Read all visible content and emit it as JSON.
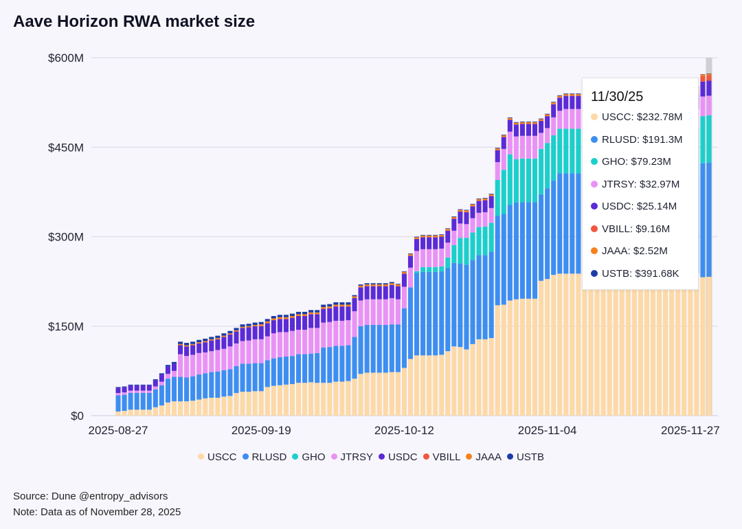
{
  "title": "Aave Horizon RWA market size",
  "footer": {
    "source": "Source: Dune @entropy_advisors",
    "note": "Note: Data as of November 28, 2025"
  },
  "tooltip": {
    "date": "11/30/25",
    "rows": [
      {
        "label": "USCC: $232.78M",
        "color": "#fcd9a6"
      },
      {
        "label": "RLUSD: $191.3M",
        "color": "#3d8ef0"
      },
      {
        "label": "GHO: $79.23M",
        "color": "#1ccfcb"
      },
      {
        "label": "JTRSY: $32.97M",
        "color": "#e992f5"
      },
      {
        "label": "USDC: $25.14M",
        "color": "#5b2bd6"
      },
      {
        "label": "VBILL: $9.16M",
        "color": "#f2573d"
      },
      {
        "label": "JAAA: $2.52M",
        "color": "#f5821f"
      },
      {
        "label": "USTB: $391.68K",
        "color": "#1c3da6"
      }
    ]
  },
  "chart_data": {
    "type": "bar",
    "stacked": true,
    "title": "Aave Horizon RWA market size",
    "xlabel": "",
    "ylabel": "",
    "ylim": [
      0,
      600
    ],
    "y_unit": "$M",
    "yticks": [
      0,
      150,
      300,
      450,
      600
    ],
    "ytick_labels": [
      "$0",
      "$150M",
      "$300M",
      "$450M",
      "$600M"
    ],
    "xtick_labels": [
      "2025-08-27",
      "2025-09-19",
      "2025-10-12",
      "2025-11-04",
      "2025-11-27"
    ],
    "xtick_index": [
      0,
      23,
      46,
      69,
      92
    ],
    "grid": true,
    "legend_position": "bottom",
    "series_order": [
      "USCC",
      "RLUSD",
      "GHO",
      "JTRSY",
      "USDC",
      "VBILL",
      "JAAA",
      "USTB"
    ],
    "colors": {
      "USCC": "#fcd9a6",
      "RLUSD": "#3d8ef0",
      "GHO": "#1ccfcb",
      "JTRSY": "#e992f5",
      "USDC": "#5b2bd6",
      "VBILL": "#f2573d",
      "JAAA": "#f5821f",
      "USTB": "#1c3da6"
    },
    "highlight_index": 95,
    "series": [
      {
        "name": "USCC",
        "values": [
          7,
          8,
          10,
          10,
          10,
          10,
          14,
          17,
          22,
          24,
          24,
          24,
          25,
          27,
          29,
          30,
          30,
          32,
          33,
          38,
          40,
          40,
          41,
          41,
          48,
          50,
          51,
          52,
          53,
          55,
          55,
          56,
          55,
          55,
          55,
          57,
          57,
          58,
          62,
          70,
          72,
          72,
          72,
          72,
          73,
          73,
          80,
          95,
          101,
          101,
          101,
          101,
          102,
          108,
          116,
          115,
          111,
          120,
          128,
          128,
          130,
          185,
          186,
          193,
          195,
          196,
          196,
          196,
          226,
          229,
          236,
          238,
          238,
          238,
          238,
          238,
          238,
          238,
          238,
          238,
          238,
          238,
          238,
          238,
          238,
          238,
          238,
          238,
          238,
          238,
          238,
          238,
          238,
          238,
          232,
          232.78
        ]
      },
      {
        "name": "RLUSD",
        "values": [
          27,
          27,
          28,
          28,
          28,
          28,
          30,
          34,
          40,
          41,
          41,
          40,
          41,
          42,
          42,
          43,
          44,
          44,
          45,
          45,
          47,
          47,
          47,
          47,
          45,
          46,
          47,
          47,
          47,
          48,
          48,
          48,
          50,
          59,
          60,
          60,
          60,
          60,
          70,
          80,
          80,
          80,
          80,
          80,
          80,
          80,
          100,
          120,
          138,
          140,
          140,
          140,
          140,
          140,
          140,
          140,
          142,
          141,
          141,
          141,
          145,
          150,
          152,
          160,
          162,
          162,
          162,
          162,
          145,
          152,
          158,
          168,
          168,
          168,
          168,
          168,
          168,
          168,
          168,
          168,
          168,
          168,
          168,
          168,
          168,
          168,
          168,
          168,
          168,
          168,
          168,
          168,
          168,
          168,
          191,
          191.3
        ]
      },
      {
        "name": "GHO",
        "values": [
          0,
          0,
          0,
          0,
          0,
          0,
          0,
          0,
          0,
          0,
          0,
          0,
          0,
          0,
          0,
          0,
          0,
          0,
          0,
          0,
          0,
          0,
          0,
          0,
          0,
          0,
          0,
          0,
          0,
          0,
          0,
          0,
          0,
          0,
          0,
          0,
          0,
          0,
          0,
          0,
          0,
          0,
          0,
          0,
          0,
          0,
          0,
          0,
          3,
          8,
          8,
          8,
          8,
          17,
          30,
          43,
          45,
          46,
          47,
          48,
          48,
          60,
          74,
          85,
          73,
          73,
          73,
          73,
          76,
          76,
          76,
          75,
          75,
          75,
          75,
          75,
          75,
          75,
          75,
          75,
          75,
          75,
          75,
          75,
          75,
          75,
          75,
          75,
          75,
          75,
          75,
          75,
          75,
          75,
          79,
          79.23
        ]
      },
      {
        "name": "JTRSY",
        "values": [
          4,
          4,
          4,
          4,
          4,
          4,
          5,
          6,
          8,
          10,
          38,
          36,
          36,
          36,
          35,
          35,
          36,
          36,
          38,
          38,
          38,
          39,
          40,
          40,
          40,
          42,
          42,
          41,
          42,
          41,
          41,
          43,
          42,
          42,
          42,
          42,
          42,
          42,
          43,
          43,
          43,
          43,
          43,
          43,
          44,
          42,
          36,
          33,
          34,
          30,
          30,
          30,
          30,
          25,
          24,
          24,
          23,
          24,
          24,
          24,
          25,
          30,
          35,
          38,
          38,
          38,
          38,
          38,
          27,
          25,
          30,
          30,
          33,
          33,
          33,
          33,
          33,
          33,
          33,
          33,
          33,
          33,
          33,
          33,
          33,
          33,
          33,
          33,
          33,
          33,
          33,
          33,
          33,
          33,
          33,
          32.97
        ]
      },
      {
        "name": "USDC",
        "values": [
          9,
          9,
          9,
          9,
          9,
          9,
          10,
          12,
          12,
          12,
          15,
          16,
          16,
          16,
          17,
          18,
          18,
          20,
          20,
          20,
          22,
          22,
          22,
          22,
          22,
          22,
          22,
          22,
          22,
          23,
          23,
          23,
          23,
          23,
          23,
          24,
          24,
          23,
          22,
          22,
          22,
          22,
          22,
          22,
          22,
          22,
          22,
          20,
          20,
          20,
          20,
          20,
          20,
          20,
          20,
          20,
          20,
          20,
          20,
          20,
          20,
          20,
          20,
          20,
          20,
          20,
          20,
          20,
          20,
          20,
          22,
          22,
          22,
          22,
          22,
          22,
          22,
          22,
          22,
          22,
          22,
          22,
          22,
          22,
          22,
          22,
          25,
          25,
          25,
          25,
          25,
          25,
          25,
          25,
          25,
          25.14
        ]
      },
      {
        "name": "VBILL",
        "values": [
          0,
          0,
          0,
          0,
          0,
          0,
          0,
          0,
          0,
          0,
          0,
          0,
          0,
          0,
          0,
          0,
          0,
          0,
          0,
          0,
          0,
          0,
          0,
          0,
          0,
          0,
          0,
          0,
          0,
          0,
          0,
          0,
          0,
          0,
          0,
          0,
          0,
          0,
          0,
          0,
          0,
          0,
          0,
          0,
          0,
          0,
          0,
          0,
          0,
          0,
          0,
          0,
          0,
          0,
          0,
          0,
          0,
          0,
          0,
          0,
          0,
          0,
          0,
          0,
          0,
          0,
          0,
          0,
          0,
          0,
          0,
          0,
          0,
          0,
          0,
          0,
          0,
          0,
          0,
          0,
          0,
          0,
          0,
          0,
          0,
          0,
          9,
          9,
          9,
          9,
          9,
          9,
          9,
          9,
          9,
          9.16
        ]
      },
      {
        "name": "JAAA",
        "values": [
          0,
          0,
          0,
          0,
          0,
          0,
          0,
          0,
          0,
          0,
          2,
          2,
          2,
          2,
          2,
          2,
          2,
          2,
          2,
          2,
          2,
          2,
          2,
          3,
          3,
          3,
          3,
          3,
          3,
          3,
          3,
          3,
          3,
          3,
          3,
          3,
          3,
          3,
          3,
          3,
          3,
          3,
          3,
          3,
          3,
          3,
          3,
          3,
          3,
          3,
          3,
          3,
          3,
          3,
          3,
          3,
          3,
          3,
          3,
          3,
          3,
          3,
          3,
          3,
          3,
          3,
          3,
          3,
          3,
          3,
          3,
          3,
          3,
          3,
          3,
          3,
          3,
          3,
          3,
          3,
          3,
          3,
          3,
          3,
          3,
          3,
          3,
          3,
          3,
          3,
          3,
          3,
          3,
          3,
          3,
          2.52
        ]
      },
      {
        "name": "USTB",
        "values": [
          1,
          1,
          1,
          1,
          1,
          1,
          2,
          2,
          3,
          3,
          4,
          4,
          4,
          4,
          4,
          4,
          4,
          4,
          4,
          4,
          4,
          4,
          4,
          4,
          4,
          4,
          4,
          4,
          4,
          4,
          4,
          4,
          4,
          4,
          4,
          4,
          4,
          4,
          2,
          2,
          2,
          2,
          2,
          2,
          2,
          1,
          1,
          1,
          1,
          1,
          1,
          1,
          1,
          1,
          1,
          1,
          1,
          1,
          1,
          1,
          1,
          1,
          1,
          1,
          1,
          1,
          1,
          1,
          1,
          1,
          1,
          1,
          1,
          1,
          1,
          1,
          1,
          1,
          1,
          1,
          1,
          1,
          1,
          1,
          1,
          1,
          1,
          1,
          1,
          1,
          1,
          1,
          1,
          1,
          0.4,
          0.39
        ]
      }
    ]
  },
  "legend": [
    {
      "label": "USCC",
      "color": "#fcd9a6"
    },
    {
      "label": "RLUSD",
      "color": "#3d8ef0"
    },
    {
      "label": "GHO",
      "color": "#1ccfcb"
    },
    {
      "label": "JTRSY",
      "color": "#e992f5"
    },
    {
      "label": "USDC",
      "color": "#5b2bd6"
    },
    {
      "label": "VBILL",
      "color": "#f2573d"
    },
    {
      "label": "JAAA",
      "color": "#f5821f"
    },
    {
      "label": "USTB",
      "color": "#1c3da6"
    }
  ]
}
